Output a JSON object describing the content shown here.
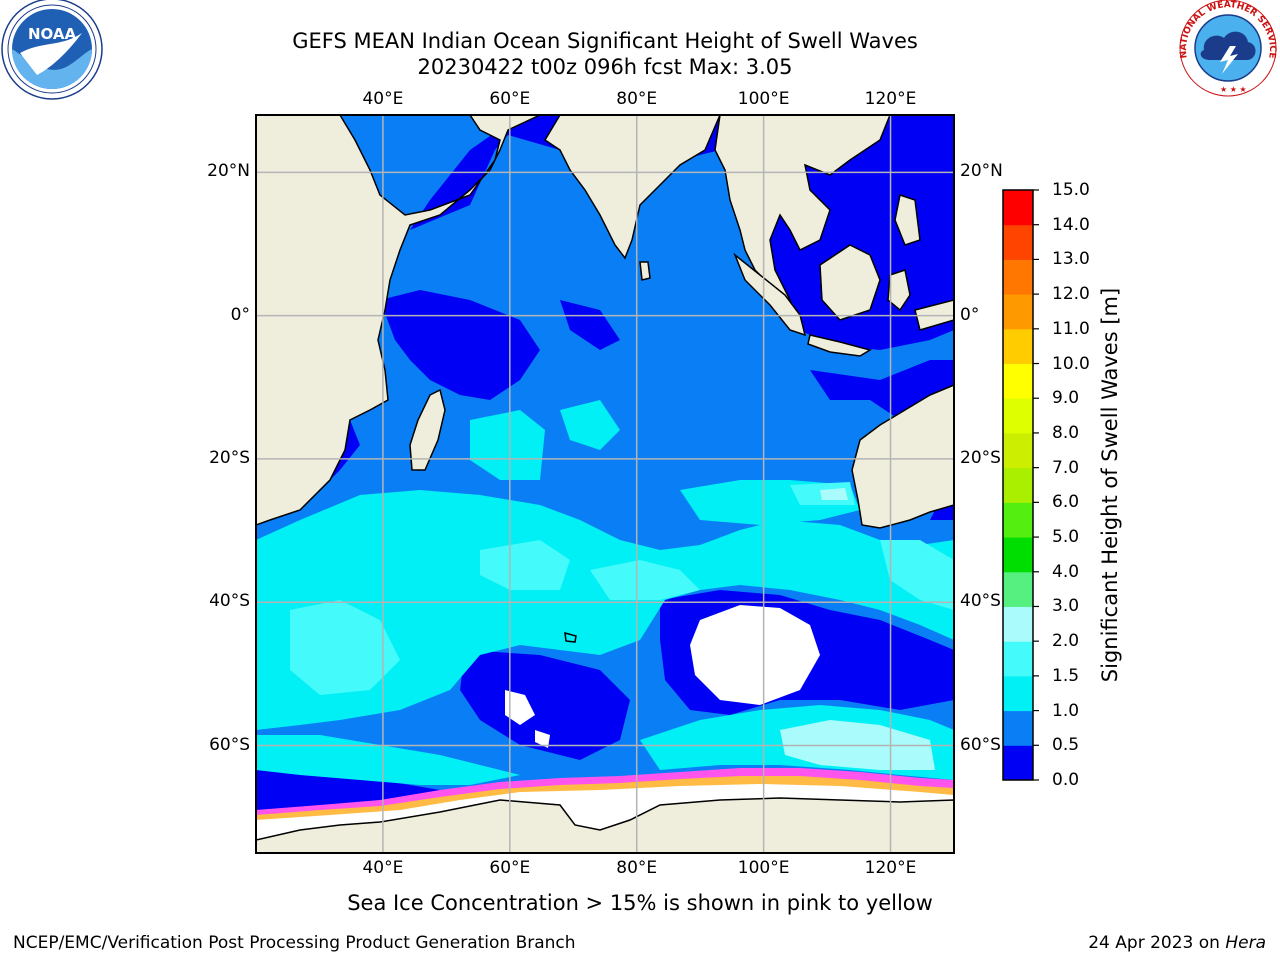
{
  "title": {
    "line1": "GEFS MEAN Indian Ocean Significant Height of Swell Waves",
    "line2": "20230422 t00z 096h fcst   Max: 3.05"
  },
  "map": {
    "lon_range": [
      20,
      130
    ],
    "lat_range": [
      -75,
      28
    ],
    "lon_ticks": [
      {
        "value": 40,
        "label": "40°E"
      },
      {
        "value": 60,
        "label": "60°E"
      },
      {
        "value": 80,
        "label": "80°E"
      },
      {
        "value": 100,
        "label": "100°E"
      },
      {
        "value": 120,
        "label": "120°E"
      }
    ],
    "lat_ticks": [
      {
        "value": 20,
        "label": "20°N"
      },
      {
        "value": 0,
        "label": "0°"
      },
      {
        "value": -20,
        "label": "20°S"
      },
      {
        "value": -40,
        "label": "40°S"
      },
      {
        "value": -60,
        "label": "60°S"
      }
    ],
    "gridlines": true
  },
  "colorbar": {
    "label": "Significant Height of Swell Waves [m]",
    "levels": [
      "0.0",
      "0.5",
      "1.0",
      "1.5",
      "2.0",
      "3.0",
      "4.0",
      "5.0",
      "6.0",
      "7.0",
      "8.0",
      "9.0",
      "10.0",
      "11.0",
      "12.0",
      "13.0",
      "14.0",
      "15.0"
    ],
    "colors": [
      "#0000f5",
      "#0a7ff5",
      "#00f0f5",
      "#44fafa",
      "#aafcfc",
      "#55f07f",
      "#00dd00",
      "#55ee11",
      "#aaee00",
      "#ccee00",
      "#ddff00",
      "#ffff00",
      "#ffcc00",
      "#ff9900",
      "#ff7700",
      "#ff4400",
      "#ff0000"
    ]
  },
  "colors": {
    "land": "#efeedd",
    "ice_white": "#ffffff",
    "ice_pink": "#ff55ee",
    "ice_yellow": "#ffbb44",
    "grid": "#b4b4b4"
  },
  "logos": {
    "left": "NOAA",
    "right": "NATIONAL WEATHER SERVICE"
  },
  "footer": {
    "note": "Sea Ice Concentration > 15% is shown in pink to yellow",
    "credit": "NCEP/EMC/Verification Post Processing Product Generation Branch",
    "date": "24 Apr 2023 on",
    "machine": "Hera"
  }
}
